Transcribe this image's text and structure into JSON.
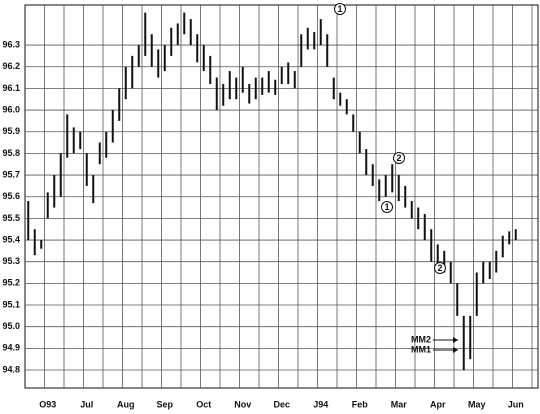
{
  "chart_data": {
    "type": "hilo",
    "color": "#111111",
    "categories": [
      null,
      null,
      null,
      "O93",
      null,
      null,
      null,
      null,
      null,
      "Jul",
      null,
      null,
      null,
      null,
      null,
      "Aug",
      null,
      null,
      null,
      null,
      null,
      "Sep",
      null,
      null,
      null,
      null,
      null,
      "Oct",
      null,
      null,
      null,
      null,
      null,
      "Nov",
      null,
      null,
      null,
      null,
      null,
      "Dec",
      null,
      null,
      null,
      null,
      null,
      "J94",
      null,
      null,
      null,
      null,
      null,
      "Feb",
      null,
      null,
      null,
      null,
      null,
      "Mar",
      null,
      null,
      null,
      null,
      null,
      "Apr",
      null,
      null,
      null,
      null,
      null,
      "May",
      null,
      null,
      null,
      null,
      null,
      "Jun"
    ],
    "high": [
      95.58,
      95.45,
      95.4,
      95.62,
      95.7,
      95.8,
      95.98,
      95.92,
      95.9,
      95.8,
      95.7,
      95.85,
      95.9,
      96.0,
      96.1,
      96.2,
      96.25,
      96.3,
      96.45,
      96.35,
      96.28,
      96.3,
      96.38,
      96.4,
      96.45,
      96.42,
      96.35,
      96.3,
      96.25,
      96.15,
      96.12,
      96.18,
      96.15,
      96.2,
      96.12,
      96.15,
      96.15,
      96.18,
      96.14,
      96.2,
      96.22,
      96.18,
      96.35,
      96.38,
      96.36,
      96.42,
      96.35,
      96.15,
      96.08,
      96.05,
      95.98,
      95.9,
      95.82,
      95.75,
      95.68,
      95.7,
      95.75,
      95.7,
      95.65,
      95.58,
      95.55,
      95.52,
      95.45,
      95.38,
      95.35,
      95.3,
      95.2,
      95.05,
      95.05,
      95.25,
      95.3,
      95.3,
      95.35,
      95.42,
      95.44,
      95.45
    ],
    "low": [
      95.4,
      95.33,
      95.36,
      95.5,
      95.55,
      95.6,
      95.78,
      95.8,
      95.82,
      95.65,
      95.57,
      95.75,
      95.78,
      95.85,
      95.95,
      96.05,
      96.1,
      96.2,
      96.25,
      96.2,
      96.15,
      96.18,
      96.25,
      96.3,
      96.35,
      96.3,
      96.22,
      96.18,
      96.12,
      96.0,
      96.02,
      96.05,
      96.05,
      96.08,
      96.03,
      96.05,
      96.07,
      96.08,
      96.07,
      96.12,
      96.12,
      96.1,
      96.2,
      96.28,
      96.28,
      96.3,
      96.2,
      96.05,
      96.02,
      95.98,
      95.9,
      95.8,
      95.7,
      95.65,
      95.58,
      95.6,
      95.62,
      95.58,
      95.55,
      95.5,
      95.45,
      95.4,
      95.3,
      95.28,
      95.25,
      95.2,
      95.05,
      94.8,
      94.85,
      95.05,
      95.2,
      95.22,
      95.25,
      95.32,
      95.38,
      95.4
    ],
    "ylim": [
      94.717,
      96.485
    ],
    "yticks": [
      {
        "value": 94.8,
        "label": "94.8"
      },
      {
        "value": 94.9,
        "label": "94.9"
      },
      {
        "value": 95.0,
        "label": "95.0"
      },
      {
        "value": 95.1,
        "label": "95.1"
      },
      {
        "value": 95.2,
        "label": "95.2"
      },
      {
        "value": 95.3,
        "label": "95.3"
      },
      {
        "value": 95.4,
        "label": "95.4"
      },
      {
        "value": 95.5,
        "label": "95.5"
      },
      {
        "value": 95.6,
        "label": "95.6"
      },
      {
        "value": 95.7,
        "label": "95.7"
      },
      {
        "value": 95.8,
        "label": "95.8"
      },
      {
        "value": 95.9,
        "label": "95.9"
      },
      {
        "value": 96.0,
        "label": "96.0"
      },
      {
        "value": 96.1,
        "label": "96.1"
      },
      {
        "value": 96.2,
        "label": "96.2"
      },
      {
        "value": 96.3,
        "label": "96.3"
      }
    ],
    "grid": true,
    "annotations": [
      "1",
      "2",
      "1",
      "2",
      "MM2",
      "MM1"
    ]
  }
}
